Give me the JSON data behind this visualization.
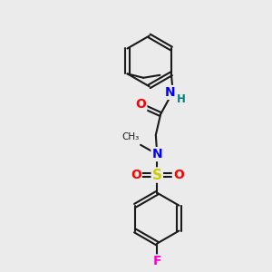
{
  "bg_color": "#ebebeb",
  "bond_color": "#1a1a1a",
  "bond_width": 1.5,
  "atom_colors": {
    "O": "#ff0000",
    "N": "#0000ff",
    "S": "#cccc00",
    "F": "#ff00cc",
    "H": "#008080",
    "C": "#1a1a1a"
  },
  "font_size_atom": 10,
  "font_size_small": 8.5
}
